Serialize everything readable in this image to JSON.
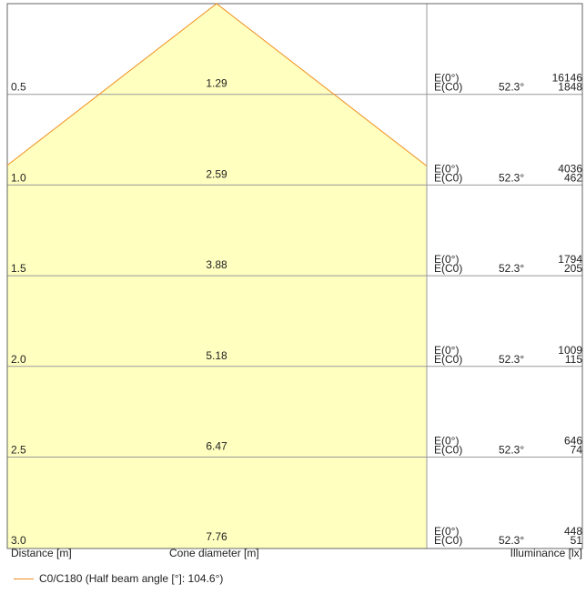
{
  "chart_data": {
    "type": "area",
    "title": "",
    "xlabel": "Cone diameter [m]",
    "ylabel": "Distance [m]",
    "right_label": "Illuminance [lx]",
    "distances": [
      "0.5",
      "1.0",
      "1.5",
      "2.0",
      "2.5",
      "3.0"
    ],
    "diameters": [
      "1.29",
      "2.59",
      "3.88",
      "5.18",
      "6.47",
      "7.76"
    ],
    "e0_label": "E(0°)",
    "ec0_label": "E(C0)",
    "angles": [
      "52.3°",
      "52.3°",
      "52.3°",
      "52.3°",
      "52.3°",
      "52.3°"
    ],
    "e0_values": [
      "16146",
      "4036",
      "1794",
      "1009",
      "646",
      "448"
    ],
    "ec0_values": [
      "1848",
      "462",
      "205",
      "115",
      "74",
      "51"
    ],
    "half_beam_angle": 52.3,
    "legend": {
      "label": "C0/C180 (Half beam angle [°]: 104.6°)"
    },
    "colors": {
      "fill": "#ffffc0",
      "outline": "#f08c1a",
      "grid": "#999999",
      "frame": "#666666"
    }
  }
}
